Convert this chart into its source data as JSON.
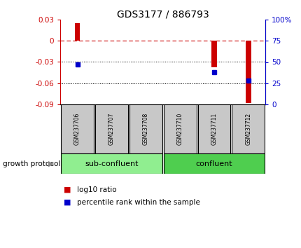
{
  "title": "GDS3177 / 886793",
  "samples": [
    "GSM237706",
    "GSM237707",
    "GSM237708",
    "GSM237710",
    "GSM237711",
    "GSM237712"
  ],
  "log10_ratio": [
    0.025,
    0.0,
    0.0,
    0.0,
    -0.037,
    -0.088
  ],
  "percentile": [
    47,
    null,
    null,
    null,
    38,
    28
  ],
  "ylim_left": [
    -0.09,
    0.03
  ],
  "ylim_right": [
    0,
    100
  ],
  "yticks_left": [
    -0.09,
    -0.06,
    -0.03,
    0.0,
    0.03
  ],
  "yticks_right": [
    0,
    25,
    50,
    75,
    100
  ],
  "bar_color": "#cc0000",
  "dot_color": "#0000cc",
  "zero_line_color": "#cc0000",
  "grid_color": "#000000",
  "sub_confluent_color": "#90ee90",
  "confluent_color": "#4fce4f",
  "sub_confluent_samples": [
    0,
    1,
    2
  ],
  "confluent_samples": [
    3,
    4,
    5
  ],
  "group_label_sub": "sub-confluent",
  "group_label_conf": "confluent",
  "protocol_label": "growth protocol",
  "legend_bar": "log10 ratio",
  "legend_dot": "percentile rank within the sample",
  "bar_width": 0.15,
  "sample_box_color": "#c8c8c8"
}
